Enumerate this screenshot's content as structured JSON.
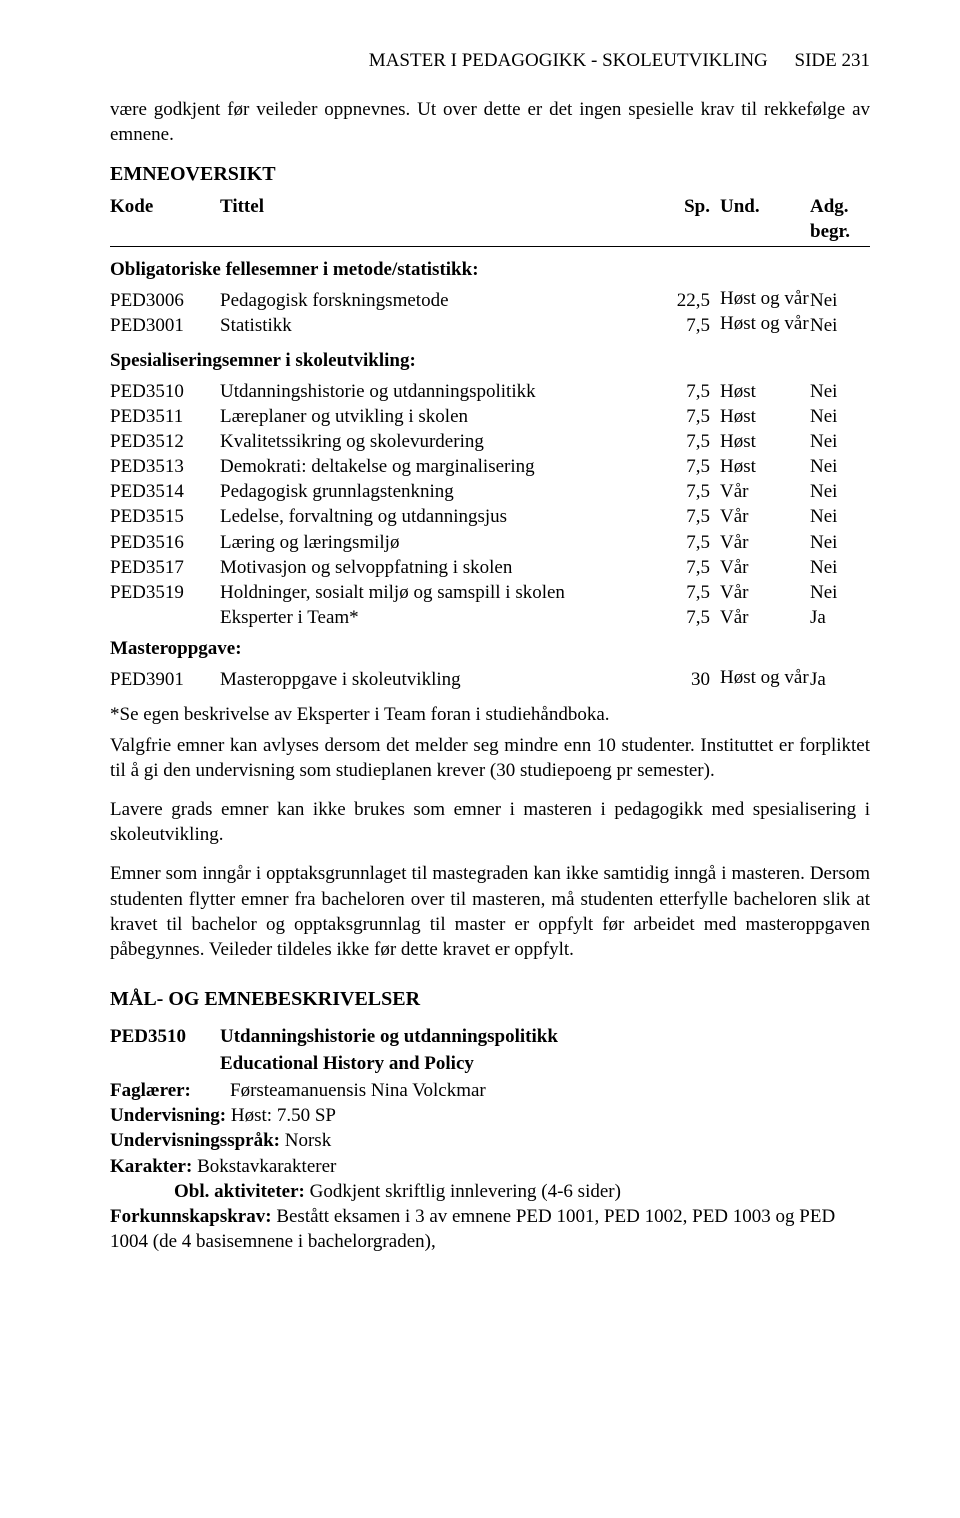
{
  "header": {
    "left": "MASTER I PEDAGOGIKK - SKOLEUTVIKLING",
    "right": "SIDE 231"
  },
  "intro": "være godkjent før veileder oppnevnes. Ut over dette er det ingen spesielle krav til rekkefølge av emnene.",
  "emneoversikt": {
    "title": "EMNEOVERSIKT",
    "cols": {
      "kode": "Kode",
      "title": "Tittel",
      "sp": "Sp.",
      "und": "Und.",
      "adg": "Adg. begr."
    },
    "group1_head": "Obligatoriske fellesemner i metode/statistikk:",
    "group1": [
      {
        "kode": "PED3006",
        "title": "Pedagogisk forskningsmetode",
        "sp": "22,5",
        "und": "Høst og vår",
        "adg": "Nei"
      },
      {
        "kode": "PED3001",
        "title": "Statistikk",
        "sp": "7,5",
        "und": "Høst og vår",
        "adg": "Nei"
      }
    ],
    "group2_head": "Spesialiseringsemner i skoleutvikling:",
    "group2": [
      {
        "kode": "PED3510",
        "title": "Utdanningshistorie og utdanningspolitikk",
        "sp": "7,5",
        "und": "Høst",
        "adg": "Nei"
      },
      {
        "kode": "PED3511",
        "title": "Læreplaner og utvikling i skolen",
        "sp": "7,5",
        "und": "Høst",
        "adg": "Nei"
      },
      {
        "kode": "PED3512",
        "title": "Kvalitetssikring og skolevurdering",
        "sp": "7,5",
        "und": "Høst",
        "adg": "Nei"
      },
      {
        "kode": "PED3513",
        "title": "Demokrati: deltakelse og marginalisering",
        "sp": "7,5",
        "und": "Høst",
        "adg": "Nei"
      },
      {
        "kode": "PED3514",
        "title": "Pedagogisk grunnlagstenkning",
        "sp": "7,5",
        "und": "Vår",
        "adg": "Nei"
      },
      {
        "kode": "PED3515",
        "title": "Ledelse, forvaltning og utdanningsjus",
        "sp": "7,5",
        "und": "Vår",
        "adg": "Nei"
      },
      {
        "kode": "PED3516",
        "title": "Læring og læringsmiljø",
        "sp": "7,5",
        "und": "Vår",
        "adg": "Nei"
      },
      {
        "kode": "PED3517",
        "title": "Motivasjon og selvoppfatning i skolen",
        "sp": "7,5",
        "und": "Vår",
        "adg": "Nei"
      },
      {
        "kode": "PED3519",
        "title": "Holdninger, sosialt miljø og samspill i skolen",
        "sp": "7,5",
        "und": "Vår",
        "adg": "Nei"
      },
      {
        "kode": "",
        "title": "Eksperter i Team*",
        "sp": "7,5",
        "und": "Vår",
        "adg": "Ja"
      }
    ],
    "master_head": "Masteroppgave:",
    "master": {
      "kode": "PED3901",
      "title": "Masteroppgave i skoleutvikling",
      "sp": "30",
      "und": "Høst og vår",
      "adg": "Ja"
    }
  },
  "body_paragraphs": [
    "*Se egen beskrivelse av Eksperter i Team foran i studiehåndboka.",
    "Valgfrie emner kan avlyses dersom det melder seg mindre enn 10 studenter. Instituttet er forpliktet til å gi den undervisning som studieplanen krever (30 studiepoeng pr semester).",
    "Lavere grads emner kan ikke brukes som emner i masteren i pedagogikk med spesialisering i skoleutvikling.",
    "Emner som inngår i opptaksgrunnlaget til mastegraden kan ikke samtidig inngå i masteren. Dersom studenten flytter emner fra bacheloren over til masteren, må studenten etterfylle bacheloren slik at kravet til bachelor og opptaksgrunnlag til master er oppfylt før arbeidet med masteroppgaven påbegynnes. Veileder tildeles ikke før dette kravet er oppfylt."
  ],
  "desc_heading": "MÅL- OG EMNEBESKRIVELSER",
  "course": {
    "code": "PED3510",
    "title_no": "Utdanningshistorie og utdanningspolitikk",
    "title_en": "Educational History and Policy",
    "faglaerer_label": "Faglærer:",
    "faglaerer": "Førsteamanuensis Nina Volckmar",
    "underv_label": "Undervisning:",
    "underv": "Høst: 7.50 SP",
    "sprak_label": "Undervisningsspråk:",
    "sprak": "Norsk",
    "karakter_label": "Karakter:",
    "karakter": "Bokstavkarakterer",
    "obl_label": "Obl. aktiviteter:",
    "obl": "Godkjent skriftlig innlevering (4-6 sider)",
    "fork_label": "Forkunnskapskrav:",
    "fork": "Bestått eksamen i 3 av emnene PED 1001, PED 1002, PED 1003 og PED 1004 (de 4 basisemnene i bachelorgraden),"
  }
}
